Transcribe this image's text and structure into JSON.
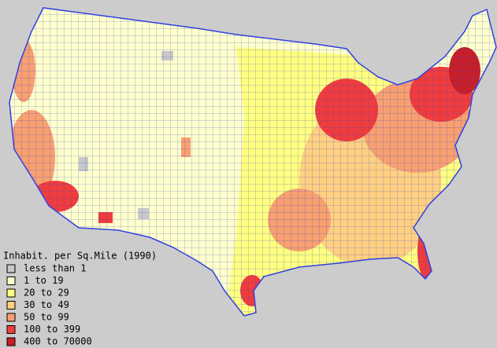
{
  "legend": {
    "title": "Inhabit. per Sq.Mile (1990)",
    "items": [
      {
        "label": "less than 1",
        "color": "#c8c8c8"
      },
      {
        "label": "1 to 19",
        "color": "#ffffcc"
      },
      {
        "label": "20 to 29",
        "color": "#ffff80"
      },
      {
        "label": "30 to 49",
        "color": "#ffd080"
      },
      {
        "label": "50 to 99",
        "color": "#f8a070"
      },
      {
        "label": "100 to 399",
        "color": "#f03c3c"
      },
      {
        "label": "400 to 70000",
        "color": "#c81e28"
      }
    ]
  }
}
